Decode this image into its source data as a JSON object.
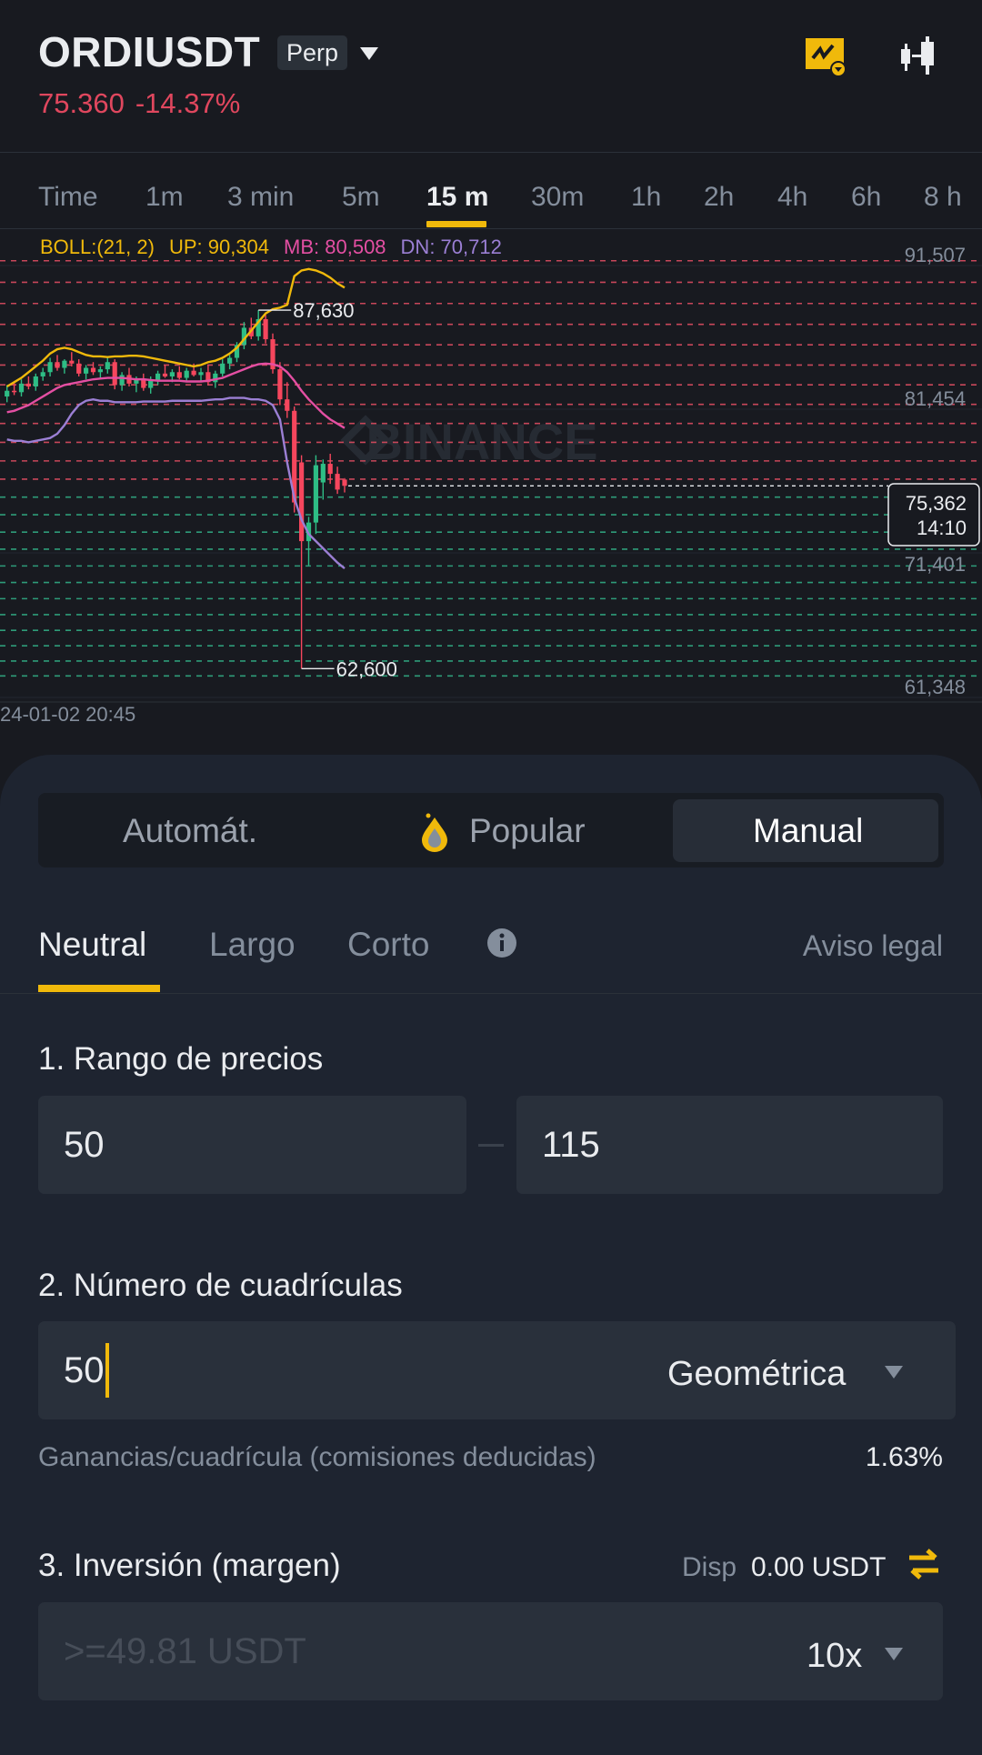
{
  "header": {
    "symbol": "ORDIUSDT",
    "contract_type": "Perp",
    "last_price": "75.360",
    "change": "-14.37%",
    "icons": [
      "grid-bot-icon",
      "candlestick-chart-icon"
    ],
    "accent": "#f0b90b",
    "down_color": "#e0475e"
  },
  "timeframes": {
    "items": [
      "Time",
      "1m",
      "3 min",
      "5m",
      "15 m",
      "30m",
      "1h",
      "2h",
      "4h",
      "6h",
      "8 h"
    ],
    "active": "15 m"
  },
  "indicator": {
    "label": "BOLL:(21, 2)",
    "up": "UP: 90,304",
    "mb": "MB: 80,508",
    "dn": "DN: 70,712",
    "colors": {
      "up": "#f0b90b",
      "mb": "#e44fa3",
      "dn": "#9b7fd4"
    }
  },
  "chart_data": {
    "type": "candlestick",
    "y_axis_labels": [
      "91,507",
      "81,454",
      "71,401",
      "61,348"
    ],
    "ylim": [
      61348,
      91507
    ],
    "high_marker": "87,630",
    "low_marker": "62,600",
    "current_price": "75,362",
    "countdown": "14:10",
    "current_price_value": 75362,
    "date_label": "24-01-02 20:45",
    "watermark": "BINANCE",
    "candles": [
      [
        81600,
        82400,
        81200,
        82000
      ],
      [
        82000,
        82600,
        81700,
        81900
      ],
      [
        81900,
        82800,
        81600,
        82500
      ],
      [
        82500,
        83000,
        82100,
        82300
      ],
      [
        82300,
        83200,
        82000,
        83000
      ],
      [
        83000,
        83600,
        82700,
        83300
      ],
      [
        83300,
        84300,
        83000,
        84000
      ],
      [
        84000,
        84500,
        83400,
        83600
      ],
      [
        83600,
        84200,
        83200,
        84100
      ],
      [
        84100,
        84700,
        83700,
        83900
      ],
      [
        83900,
        84200,
        83000,
        83200
      ],
      [
        83200,
        83800,
        82800,
        83600
      ],
      [
        83600,
        84000,
        83100,
        83300
      ],
      [
        83300,
        83700,
        82900,
        83500
      ],
      [
        83500,
        84300,
        83200,
        84000
      ],
      [
        84000,
        84200,
        82100,
        82400
      ],
      [
        82400,
        83300,
        82000,
        83100
      ],
      [
        83100,
        83600,
        82300,
        82500
      ],
      [
        82500,
        83000,
        81900,
        82800
      ],
      [
        82800,
        83200,
        82000,
        82200
      ],
      [
        82200,
        83000,
        81800,
        82700
      ],
      [
        82700,
        83400,
        82400,
        83200
      ],
      [
        83200,
        83800,
        82900,
        83000
      ],
      [
        83000,
        83500,
        82600,
        83300
      ],
      [
        83300,
        83700,
        82800,
        82900
      ],
      [
        82900,
        83600,
        82600,
        83400
      ],
      [
        83400,
        83900,
        83000,
        83100
      ],
      [
        83100,
        83600,
        82700,
        83300
      ],
      [
        83300,
        83800,
        82400,
        82600
      ],
      [
        82600,
        83400,
        82200,
        83200
      ],
      [
        83200,
        84200,
        83000,
        83900
      ],
      [
        83900,
        84500,
        83500,
        84300
      ],
      [
        84300,
        85400,
        84000,
        85200
      ],
      [
        85200,
        86800,
        84900,
        86400
      ],
      [
        86400,
        87100,
        85600,
        85800
      ],
      [
        85800,
        87630,
        85500,
        87000
      ],
      [
        87000,
        87300,
        85300,
        85600
      ],
      [
        85600,
        86000,
        83200,
        83500
      ],
      [
        83500,
        84000,
        81000,
        81400
      ],
      [
        81400,
        82600,
        80100,
        80600
      ],
      [
        80600,
        80900,
        73500,
        74200
      ],
      [
        77000,
        77500,
        62600,
        71500
      ],
      [
        71500,
        73200,
        69800,
        72800
      ],
      [
        72800,
        77500,
        72000,
        76800
      ],
      [
        75600,
        77200,
        74400,
        76900
      ],
      [
        76900,
        77600,
        75500,
        76200
      ],
      [
        76200,
        76700,
        74800,
        75100
      ],
      [
        75800,
        75900,
        74900,
        75362
      ]
    ],
    "boll_up": [
      82300,
      82600,
      82900,
      83300,
      83700,
      84100,
      84600,
      84900,
      85000,
      84900,
      84700,
      84500,
      84400,
      84400,
      84350,
      84400,
      84400,
      84450,
      84450,
      84400,
      84300,
      84200,
      84100,
      84000,
      83900,
      83800,
      83700,
      83800,
      84000,
      84100,
      84300,
      84600,
      85000,
      85600,
      86200,
      86800,
      87400,
      87700,
      87800,
      88000,
      90000,
      90400,
      90500,
      90400,
      90200,
      89900,
      89500,
      89200
    ],
    "boll_mb": [
      80500,
      80600,
      80800,
      81000,
      81300,
      81600,
      81900,
      82200,
      82400,
      82500,
      82600,
      82700,
      82800,
      82850,
      82900,
      82900,
      82900,
      82850,
      82800,
      82800,
      82750,
      82700,
      82700,
      82700,
      82700,
      82650,
      82650,
      82650,
      82700,
      82800,
      82900,
      83100,
      83300,
      83500,
      83700,
      83850,
      83900,
      83850,
      83700,
      83300,
      82700,
      82000,
      81400,
      80900,
      80400,
      80000,
      79700,
      79400
    ],
    "boll_dn": [
      78600,
      78500,
      78500,
      78400,
      78500,
      78600,
      78700,
      79000,
      79600,
      80400,
      81000,
      81300,
      81400,
      81300,
      81300,
      81200,
      81200,
      81200,
      81200,
      81250,
      81250,
      81250,
      81250,
      81300,
      81300,
      81300,
      81300,
      81300,
      81350,
      81400,
      81400,
      81500,
      81500,
      81500,
      81400,
      81400,
      81300,
      81000,
      80000,
      77000,
      74500,
      73000,
      72000,
      71500,
      71000,
      70500,
      70000,
      69600
    ],
    "grid_lines": "geometric levels between lower and upper price, red above current price, green below",
    "colors": {
      "up_candle": "#2ebd85",
      "down_candle": "#f6465d",
      "grid_above": "#c8475a",
      "grid_below": "#2e9c79"
    }
  },
  "mode_selector": {
    "items": [
      "Automát.",
      "Popular",
      "Manual"
    ],
    "selected": "Manual",
    "popular_icon": "fire-drop-icon"
  },
  "direction_tabs": {
    "items": [
      "Neutral",
      "Largo",
      "Corto"
    ],
    "active": "Neutral",
    "info_icon": "info-icon",
    "legal": "Aviso legal"
  },
  "form": {
    "price_range": {
      "label": "1. Rango de precios",
      "lower": "50",
      "upper": "115",
      "separator": "—"
    },
    "grids": {
      "label": "2. Número de cuadrículas",
      "value": "50",
      "mode": "Geométrica",
      "profit_label": "Ganancias/cuadrícula (comisiones deducidas)",
      "profit_value": "1.63%"
    },
    "investment": {
      "label": "3. Inversión (margen)",
      "available_label": "Disp",
      "available_value": "0.00 USDT",
      "placeholder": ">=49.81 USDT",
      "leverage": "10x"
    }
  }
}
